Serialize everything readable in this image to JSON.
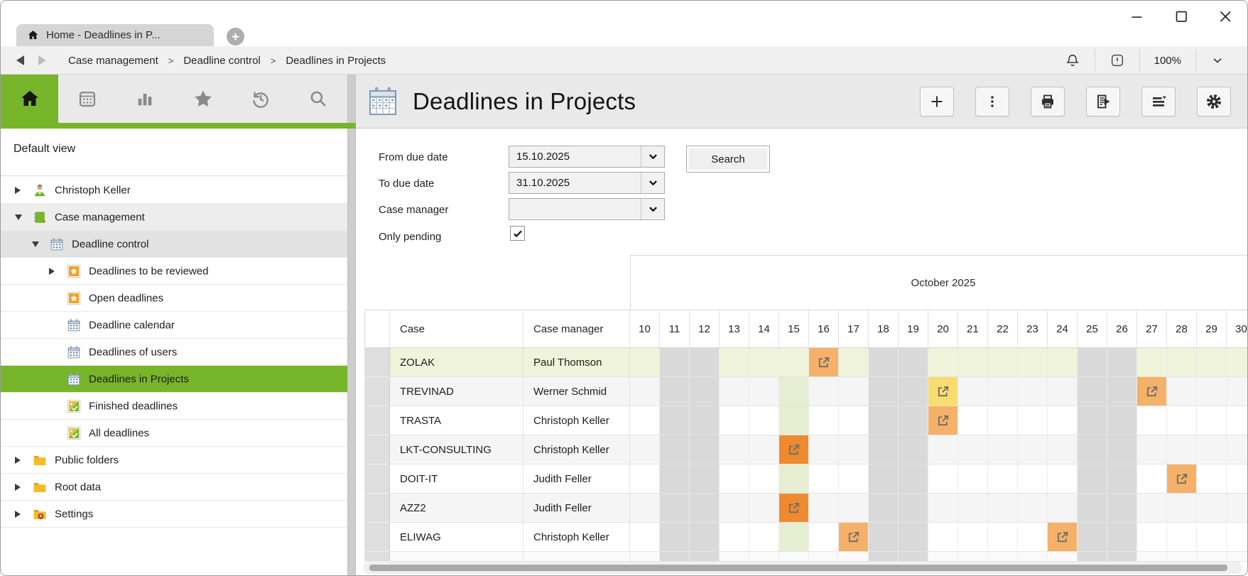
{
  "window": {
    "tab_title": "Home - Deadlines in P...",
    "zoom_level": "100%"
  },
  "breadcrumb": {
    "separator": ">",
    "items": [
      "Case management",
      "Deadline control",
      "Deadlines in Projects"
    ]
  },
  "sidebar": {
    "view_label": "Default view",
    "tree": [
      {
        "label": "Christoph Keller",
        "level": 0,
        "arrow": "right",
        "icon": "user",
        "bg": ""
      },
      {
        "label": "Case management",
        "level": 0,
        "arrow": "down",
        "icon": "book",
        "bg": "#ededed"
      },
      {
        "label": "Deadline control",
        "level": 1,
        "arrow": "down",
        "icon": "calendar",
        "bg": "#e2e2e2"
      },
      {
        "label": "Deadlines to be reviewed",
        "level": 2,
        "arrow": "right",
        "icon": "star",
        "bg": ""
      },
      {
        "label": "Open deadlines",
        "level": 2,
        "arrow": "",
        "icon": "star",
        "bg": ""
      },
      {
        "label": "Deadline calendar",
        "level": 2,
        "arrow": "",
        "icon": "calendar",
        "bg": ""
      },
      {
        "label": "Deadlines of users",
        "level": 2,
        "arrow": "",
        "icon": "calendar",
        "bg": ""
      },
      {
        "label": "Deadlines in Projects",
        "level": 2,
        "arrow": "",
        "icon": "calendar",
        "bg": "#77b52a",
        "selected": true
      },
      {
        "label": "Finished deadlines",
        "level": 2,
        "arrow": "",
        "icon": "check",
        "bg": ""
      },
      {
        "label": "All deadlines",
        "level": 2,
        "arrow": "",
        "icon": "check",
        "bg": ""
      },
      {
        "label": "Public folders",
        "level": 0,
        "arrow": "right",
        "icon": "folder",
        "bg": ""
      },
      {
        "label": "Root data",
        "level": 0,
        "arrow": "right",
        "icon": "folder",
        "bg": ""
      },
      {
        "label": "Settings",
        "level": 0,
        "arrow": "right",
        "icon": "folder-settings",
        "bg": ""
      }
    ]
  },
  "main": {
    "title": "Deadlines in Projects",
    "filters": {
      "from_label": "From due date",
      "from_value": "15.10.2025",
      "to_label": "To due date",
      "to_value": "31.10.2025",
      "manager_label": "Case manager",
      "manager_value": "",
      "pending_label": "Only pending",
      "pending_checked": true,
      "search_label": "Search"
    },
    "colors": {
      "accent": "#77b52a",
      "light_orange": "#f5b168",
      "dark_orange": "#ee8a2f",
      "yellow": "#f8dc6e",
      "weekend": "#d9d9d9",
      "today_column": "#e5eed1",
      "highlight_row": "#eef3da"
    },
    "schedule": {
      "month_label": "October 2025",
      "case_header": "Case",
      "manager_header": "Case manager",
      "days": [
        10,
        11,
        12,
        13,
        14,
        15,
        16,
        17,
        18,
        19,
        20,
        21,
        22,
        23,
        24,
        25,
        26,
        27,
        28,
        29,
        30
      ],
      "weekend_days": [
        11,
        12,
        18,
        19,
        25,
        26
      ],
      "highlight_day": 15,
      "rows": [
        {
          "case": "ZOLAK",
          "manager": "Paul Thomson",
          "highlighted": true,
          "markers": [
            {
              "day": 16,
              "color": "light_orange"
            }
          ]
        },
        {
          "case": "TREVINAD",
          "manager": "Werner Schmid",
          "highlighted": false,
          "markers": [
            {
              "day": 20,
              "color": "yellow"
            },
            {
              "day": 27,
              "color": "light_orange"
            }
          ]
        },
        {
          "case": "TRASTA",
          "manager": "Christoph Keller",
          "highlighted": false,
          "markers": [
            {
              "day": 20,
              "color": "light_orange"
            }
          ]
        },
        {
          "case": "LKT-CONSULTING",
          "manager": "Christoph Keller",
          "highlighted": false,
          "markers": [
            {
              "day": 15,
              "color": "dark_orange"
            }
          ]
        },
        {
          "case": "DOIT-IT",
          "manager": "Judith Feller",
          "highlighted": false,
          "markers": [
            {
              "day": 28,
              "color": "light_orange"
            }
          ]
        },
        {
          "case": "AZZ2",
          "manager": "Judith Feller",
          "highlighted": false,
          "markers": [
            {
              "day": 15,
              "color": "dark_orange"
            }
          ]
        },
        {
          "case": "ELIWAG",
          "manager": "Christoph Keller",
          "highlighted": false,
          "markers": [
            {
              "day": 17,
              "color": "light_orange"
            },
            {
              "day": 24,
              "color": "light_orange"
            }
          ]
        }
      ]
    }
  }
}
